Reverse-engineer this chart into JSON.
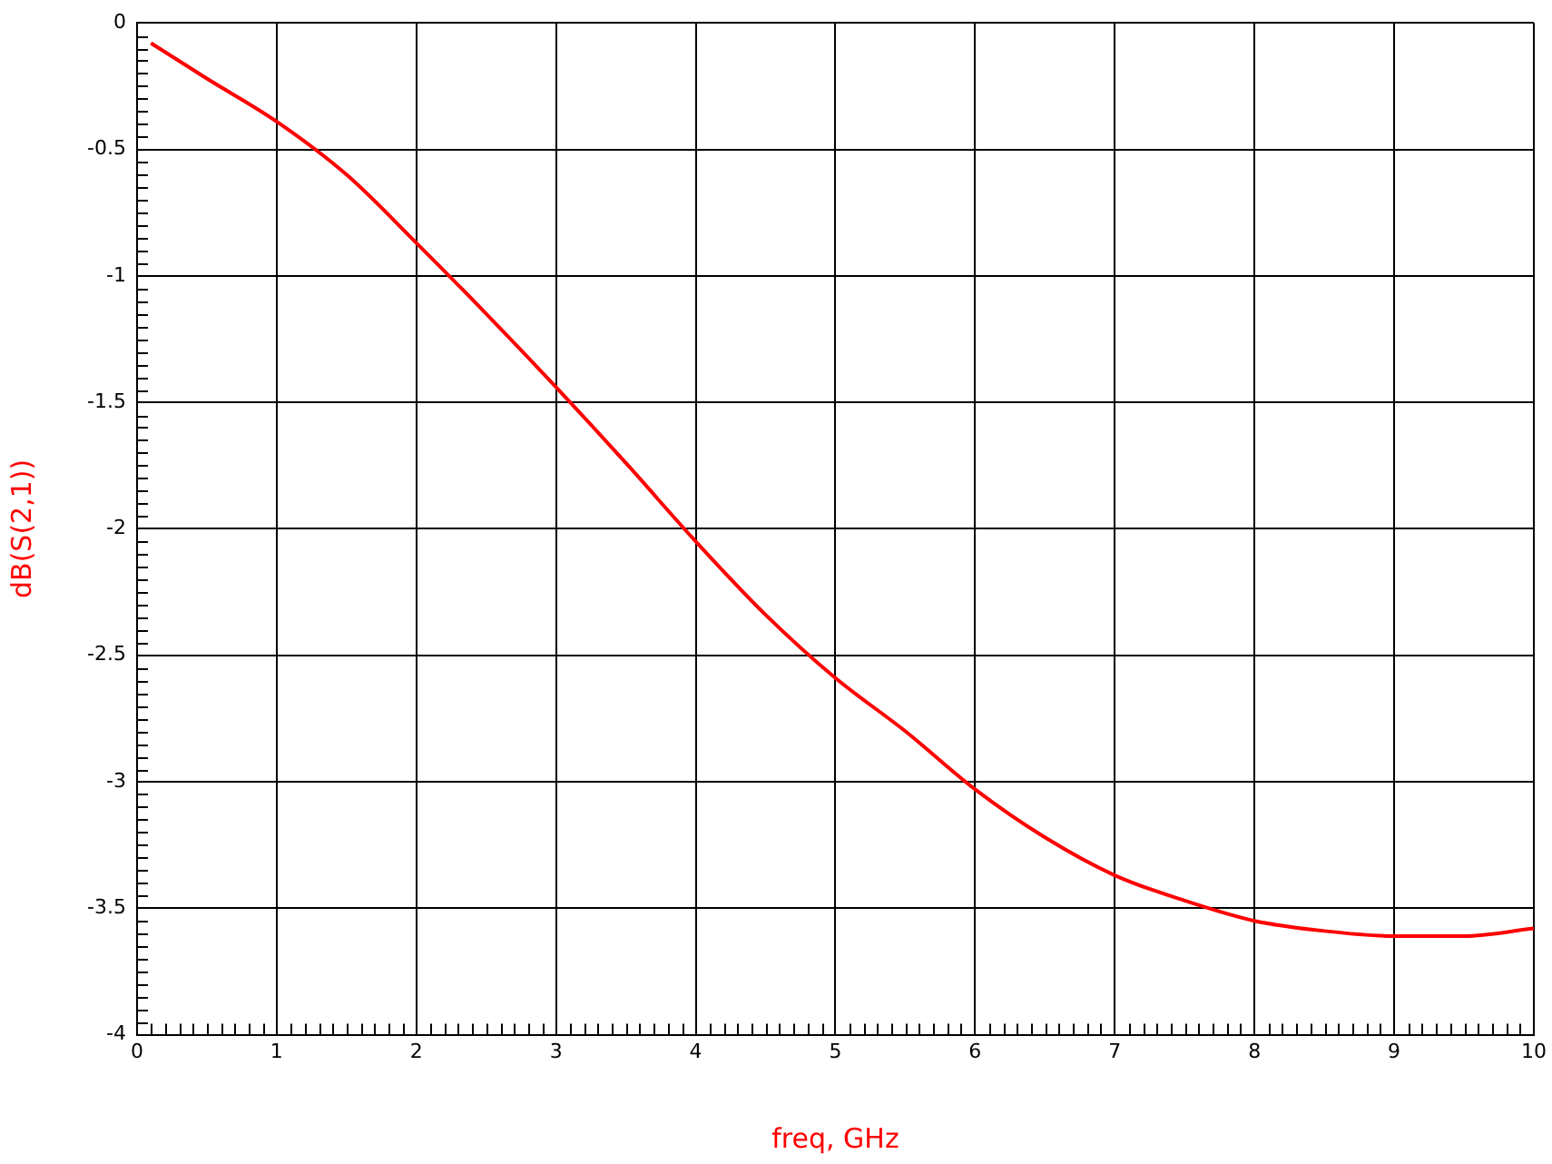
{
  "chart_data": {
    "type": "line",
    "xlabel": "freq, GHz",
    "ylabel": "dB(S(2,1))",
    "x": [
      0.1,
      0.5,
      1,
      1.5,
      2,
      2.5,
      3,
      3.5,
      4,
      4.5,
      5,
      5.5,
      6,
      6.5,
      7,
      7.5,
      8,
      8.5,
      9,
      9.5,
      10
    ],
    "series": [
      {
        "color": "#ff0000",
        "values": [
          -0.08,
          -0.22,
          -0.39,
          -0.6,
          -0.87,
          -1.15,
          -1.44,
          -1.74,
          -2.05,
          -2.34,
          -2.59,
          -2.8,
          -3.03,
          -3.22,
          -3.37,
          -3.47,
          -3.55,
          -3.59,
          -3.61,
          -3.61,
          -3.58
        ]
      }
    ],
    "xlim": [
      0,
      10
    ],
    "xticks": [
      0,
      1,
      2,
      3,
      4,
      5,
      6,
      7,
      8,
      9,
      10
    ],
    "ylim": [
      -4,
      0
    ],
    "yticks": [
      -4,
      -3.5,
      -3,
      -2.5,
      -2,
      -1.5,
      -1,
      -0.5,
      0
    ],
    "grid": true,
    "legend": false,
    "marker": "none",
    "line_style": "solid"
  }
}
